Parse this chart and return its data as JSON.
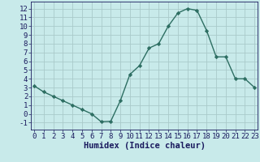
{
  "x": [
    0,
    1,
    2,
    3,
    4,
    5,
    6,
    7,
    8,
    9,
    10,
    11,
    12,
    13,
    14,
    15,
    16,
    17,
    18,
    19,
    20,
    21,
    22,
    23
  ],
  "y": [
    3.2,
    2.5,
    2.0,
    1.5,
    1.0,
    0.5,
    0.0,
    -0.9,
    -0.85,
    1.5,
    4.5,
    5.5,
    7.5,
    8.0,
    10.0,
    11.5,
    12.0,
    11.8,
    9.5,
    6.5,
    6.5,
    4.0,
    4.0,
    3.0
  ],
  "line_color": "#2d6e62",
  "marker_color": "#2d6e62",
  "bg_color": "#c8eaea",
  "grid_color": "#aacaca",
  "xlabel": "Humidex (Indice chaleur)",
  "ylim": [
    -1.8,
    12.8
  ],
  "xlim": [
    -0.3,
    23.3
  ],
  "yticks": [
    -1,
    0,
    1,
    2,
    3,
    4,
    5,
    6,
    7,
    8,
    9,
    10,
    11,
    12
  ],
  "xticks": [
    0,
    1,
    2,
    3,
    4,
    5,
    6,
    7,
    8,
    9,
    10,
    11,
    12,
    13,
    14,
    15,
    16,
    17,
    18,
    19,
    20,
    21,
    22,
    23
  ],
  "font_color": "#1a1a5e",
  "xlabel_fontsize": 7.5,
  "tick_fontsize": 6.5,
  "linewidth": 1.0,
  "markersize": 2.2
}
